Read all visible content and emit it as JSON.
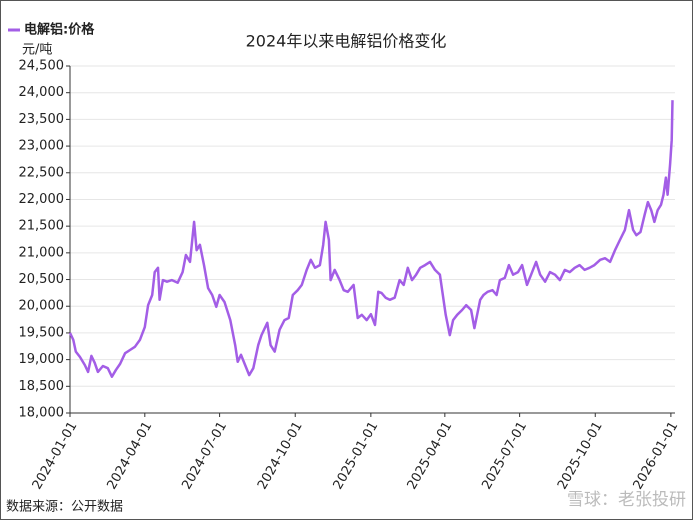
{
  "chart_data": {
    "type": "line",
    "title": "2024年以来电解铝价格变化",
    "y_unit": "元/吨",
    "source": "数据来源：公开数据",
    "watermark": "雪球：老张投研",
    "series": [
      {
        "name": "电解铝:价格",
        "color": "#a35ee6",
        "x": [
          "2024-01-01",
          "2024-01-05",
          "2024-01-08",
          "2024-01-13",
          "2024-01-19",
          "2024-01-23",
          "2024-01-27",
          "2024-01-31",
          "2024-02-04",
          "2024-02-10",
          "2024-02-16",
          "2024-02-21",
          "2024-02-26",
          "2024-03-02",
          "2024-03-08",
          "2024-03-14",
          "2024-03-20",
          "2024-03-26",
          "2024-04-01",
          "2024-04-05",
          "2024-04-10",
          "2024-04-13",
          "2024-04-17",
          "2024-04-19",
          "2024-04-23",
          "2024-04-28",
          "2024-05-04",
          "2024-05-11",
          "2024-05-17",
          "2024-05-21",
          "2024-05-26",
          "2024-05-31",
          "2024-06-03",
          "2024-06-07",
          "2024-06-12",
          "2024-06-17",
          "2024-06-22",
          "2024-06-27",
          "2024-07-01",
          "2024-07-07",
          "2024-07-14",
          "2024-07-20",
          "2024-07-23",
          "2024-07-27",
          "2024-08-01",
          "2024-08-06",
          "2024-08-11",
          "2024-08-17",
          "2024-08-21",
          "2024-08-28",
          "2024-09-01",
          "2024-09-06",
          "2024-09-12",
          "2024-09-18",
          "2024-09-23",
          "2024-09-28",
          "2024-10-04",
          "2024-10-09",
          "2024-10-15",
          "2024-10-20",
          "2024-10-25",
          "2024-10-31",
          "2024-11-04",
          "2024-11-07",
          "2024-11-11",
          "2024-11-13",
          "2024-11-18",
          "2024-11-24",
          "2024-11-29",
          "2024-12-04",
          "2024-12-11",
          "2024-12-16",
          "2024-12-21",
          "2024-12-27",
          "2025-01-01",
          "2025-01-06",
          "2025-01-10",
          "2025-01-14",
          "2025-01-19",
          "2025-01-24",
          "2025-01-30",
          "2025-02-05",
          "2025-02-10",
          "2025-02-15",
          "2025-02-20",
          "2025-02-25",
          "2025-03-02",
          "2025-03-08",
          "2025-03-14",
          "2025-03-20",
          "2025-03-26",
          "2025-04-02",
          "2025-04-07",
          "2025-04-11",
          "2025-04-16",
          "2025-04-22",
          "2025-04-27",
          "2025-05-03",
          "2025-05-07",
          "2025-05-14",
          "2025-05-18",
          "2025-05-23",
          "2025-05-29",
          "2025-06-03",
          "2025-06-07",
          "2025-06-13",
          "2025-06-18",
          "2025-06-23",
          "2025-06-29",
          "2025-07-04",
          "2025-07-10",
          "2025-07-15",
          "2025-07-21",
          "2025-07-26",
          "2025-08-01",
          "2025-08-07",
          "2025-08-13",
          "2025-08-19",
          "2025-08-25",
          "2025-08-31",
          "2025-09-06",
          "2025-09-12",
          "2025-09-18",
          "2025-09-24",
          "2025-09-30",
          "2025-10-07",
          "2025-10-13",
          "2025-10-19",
          "2025-10-25",
          "2025-10-31",
          "2025-11-06",
          "2025-11-11",
          "2025-11-16",
          "2025-11-20",
          "2025-11-25",
          "2025-11-30",
          "2025-12-04",
          "2025-12-08",
          "2025-12-12",
          "2025-12-16",
          "2025-12-20",
          "2025-12-23",
          "2025-12-26",
          "2025-12-28",
          "2025-12-31",
          "2026-01-02",
          "2026-01-03"
        ],
        "values": [
          19500,
          19370,
          19150,
          19050,
          18900,
          18770,
          19070,
          18940,
          18770,
          18880,
          18840,
          18680,
          18810,
          18920,
          19120,
          19180,
          19240,
          19370,
          19610,
          20020,
          20210,
          20640,
          20720,
          20120,
          20490,
          20460,
          20490,
          20440,
          20640,
          20960,
          20830,
          21580,
          21050,
          21150,
          20770,
          20340,
          20210,
          19990,
          20210,
          20080,
          19740,
          19270,
          18960,
          19090,
          18900,
          18710,
          18840,
          19270,
          19460,
          19690,
          19270,
          19150,
          19560,
          19740,
          19780,
          20210,
          20300,
          20400,
          20680,
          20870,
          20720,
          20770,
          21150,
          21580,
          21240,
          20490,
          20680,
          20490,
          20300,
          20270,
          20400,
          19780,
          19840,
          19740,
          19850,
          19650,
          20270,
          20250,
          20160,
          20120,
          20160,
          20490,
          20400,
          20720,
          20490,
          20590,
          20720,
          20770,
          20830,
          20680,
          20590,
          19840,
          19460,
          19740,
          19840,
          19930,
          20020,
          19930,
          19590,
          20120,
          20210,
          20270,
          20300,
          20210,
          20490,
          20530,
          20770,
          20590,
          20640,
          20770,
          20400,
          20590,
          20830,
          20590,
          20460,
          20640,
          20590,
          20490,
          20680,
          20640,
          20720,
          20770,
          20680,
          20720,
          20770,
          20870,
          20900,
          20830,
          21050,
          21240,
          21430,
          21800,
          21430,
          21330,
          21390,
          21710,
          21950,
          21800,
          21580,
          21800,
          21900,
          22090,
          22410,
          22090,
          22660,
          23110,
          23860
        ]
      }
    ],
    "xlim": [
      "2024-01-01",
      "2026-01-06"
    ],
    "xticks": [
      "2024-01-01",
      "2024-04-01",
      "2024-07-01",
      "2024-10-01",
      "2025-01-01",
      "2025-04-01",
      "2025-07-01",
      "2025-10-01",
      "2026-01-01"
    ],
    "ylim": [
      18000,
      24500
    ],
    "yticks": [
      {
        "value": 18000,
        "label": "18,000"
      },
      {
        "value": 18500,
        "label": "18,500"
      },
      {
        "value": 19000,
        "label": "19,000"
      },
      {
        "value": 19500,
        "label": "19,500"
      },
      {
        "value": 20000,
        "label": "20,000"
      },
      {
        "value": 20500,
        "label": "20,500"
      },
      {
        "value": 21000,
        "label": "21,000"
      },
      {
        "value": 21500,
        "label": "21,500"
      },
      {
        "value": 22000,
        "label": "22,000"
      },
      {
        "value": 22500,
        "label": "22,500"
      },
      {
        "value": 23000,
        "label": "23,000"
      },
      {
        "value": 23500,
        "label": "23,500"
      },
      {
        "value": 24000,
        "label": "24,000"
      },
      {
        "value": 24500,
        "label": "24,500"
      }
    ],
    "grid": true
  }
}
